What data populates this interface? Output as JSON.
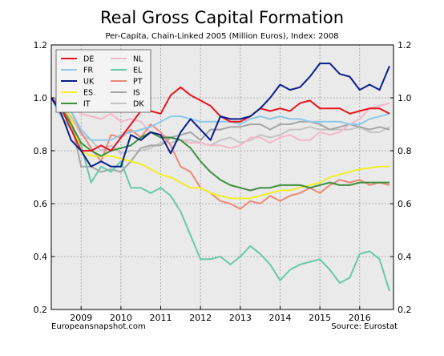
{
  "chart_data": {
    "type": "line",
    "title": "Real Gross Capital Formation",
    "subtitle": "Per-Capita, Chain-Linked 2005 (Million Euros), Index: 2008",
    "xlabel": "",
    "ylabel": "",
    "source_left": "Europeansnapshot.com",
    "source_right": "Source: Eurostat",
    "xlim": [
      2008.25,
      2016.85
    ],
    "ylim": [
      0.2,
      1.2
    ],
    "x_ticks": [
      2009,
      2010,
      2011,
      2012,
      2013,
      2014,
      2015,
      2016
    ],
    "x_tick_labels": [
      "2009",
      "2010",
      "2011",
      "2012",
      "2013",
      "2014",
      "2015",
      "2016"
    ],
    "y_ticks": [
      0.2,
      0.4,
      0.6,
      0.8,
      1.0,
      1.2
    ],
    "y_tick_labels": [
      "0.2",
      "0.4",
      "0.6",
      "0.8",
      "1.0",
      "1.2"
    ],
    "grid": true,
    "legend_position": "top-left",
    "x": [
      2008.25,
      2008.5,
      2008.75,
      2009,
      2009.25,
      2009.5,
      2009.75,
      2010,
      2010.25,
      2010.5,
      2010.75,
      2011,
      2011.25,
      2011.5,
      2011.75,
      2012,
      2012.25,
      2012.5,
      2012.75,
      2013,
      2013.25,
      2013.5,
      2013.75,
      2014,
      2014.25,
      2014.5,
      2014.75,
      2015,
      2015.25,
      2015.5,
      2015.75,
      2016,
      2016.25,
      2016.5,
      2016.75
    ],
    "series": [
      {
        "name": "DE",
        "color": "#e8141c",
        "values": [
          1.0,
          0.96,
          0.88,
          0.8,
          0.8,
          0.82,
          0.8,
          0.85,
          0.9,
          0.95,
          0.95,
          0.94,
          1.01,
          1.04,
          1.01,
          0.99,
          0.97,
          0.93,
          0.91,
          0.91,
          0.93,
          0.96,
          0.95,
          0.96,
          0.95,
          0.98,
          0.99,
          0.96,
          0.96,
          0.96,
          0.94,
          0.95,
          0.96,
          0.96,
          0.94
        ]
      },
      {
        "name": "FR",
        "color": "#8ec9ea",
        "values": [
          1.0,
          0.98,
          0.95,
          0.88,
          0.84,
          0.84,
          0.84,
          0.86,
          0.87,
          0.88,
          0.89,
          0.91,
          0.93,
          0.93,
          0.92,
          0.91,
          0.91,
          0.91,
          0.91,
          0.9,
          0.92,
          0.93,
          0.92,
          0.93,
          0.92,
          0.92,
          0.91,
          0.91,
          0.91,
          0.91,
          0.9,
          0.9,
          0.92,
          0.93,
          0.94
        ]
      },
      {
        "name": "UK",
        "color": "#0a1e8c",
        "values": [
          1.0,
          0.94,
          0.84,
          0.8,
          0.74,
          0.76,
          0.74,
          0.74,
          0.86,
          0.84,
          0.87,
          0.86,
          0.79,
          0.87,
          0.92,
          0.88,
          0.84,
          0.93,
          0.92,
          0.92,
          0.93,
          0.96,
          1.0,
          1.05,
          1.03,
          1.04,
          1.08,
          1.13,
          1.13,
          1.09,
          1.08,
          1.03,
          1.05,
          1.03,
          1.12
        ]
      },
      {
        "name": "ES",
        "color": "#f2ee23",
        "values": [
          1.0,
          0.98,
          0.92,
          0.8,
          0.78,
          0.78,
          0.78,
          0.77,
          0.76,
          0.75,
          0.73,
          0.71,
          0.7,
          0.68,
          0.66,
          0.66,
          0.64,
          0.63,
          0.62,
          0.62,
          0.62,
          0.63,
          0.64,
          0.65,
          0.65,
          0.66,
          0.67,
          0.68,
          0.7,
          0.71,
          0.72,
          0.73,
          0.735,
          0.74,
          0.74
        ]
      },
      {
        "name": "IT",
        "color": "#3e8f3e",
        "values": [
          1.0,
          0.96,
          0.9,
          0.83,
          0.8,
          0.78,
          0.8,
          0.81,
          0.82,
          0.85,
          0.87,
          0.85,
          0.85,
          0.84,
          0.81,
          0.76,
          0.72,
          0.69,
          0.67,
          0.66,
          0.65,
          0.66,
          0.66,
          0.67,
          0.67,
          0.67,
          0.66,
          0.67,
          0.68,
          0.67,
          0.67,
          0.68,
          0.68,
          0.68,
          0.68
        ]
      },
      {
        "name": "NL",
        "color": "#f4b8c8",
        "values": [
          1.0,
          0.99,
          0.97,
          0.94,
          0.93,
          0.92,
          0.94,
          0.91,
          0.92,
          0.91,
          0.87,
          0.86,
          0.85,
          0.84,
          0.83,
          0.83,
          0.82,
          0.82,
          0.81,
          0.82,
          0.85,
          0.85,
          0.83,
          0.85,
          0.86,
          0.84,
          0.84,
          0.87,
          0.86,
          0.87,
          0.9,
          0.92,
          0.96,
          0.97,
          0.98
        ]
      },
      {
        "name": "EL",
        "color": "#66c9a8",
        "values": [
          1.0,
          0.93,
          0.88,
          0.82,
          0.68,
          0.74,
          0.72,
          0.76,
          0.66,
          0.66,
          0.64,
          0.66,
          0.63,
          0.57,
          0.48,
          0.39,
          0.39,
          0.4,
          0.37,
          0.4,
          0.44,
          0.41,
          0.37,
          0.31,
          0.35,
          0.37,
          0.38,
          0.39,
          0.35,
          0.3,
          0.32,
          0.41,
          0.42,
          0.39,
          0.27
        ]
      },
      {
        "name": "PT",
        "color": "#ed8878",
        "values": [
          1.0,
          0.99,
          0.95,
          0.87,
          0.81,
          0.76,
          0.86,
          0.85,
          0.88,
          0.85,
          0.9,
          0.87,
          0.82,
          0.74,
          0.72,
          0.66,
          0.64,
          0.61,
          0.6,
          0.58,
          0.61,
          0.6,
          0.63,
          0.61,
          0.63,
          0.64,
          0.66,
          0.64,
          0.67,
          0.69,
          0.68,
          0.69,
          0.67,
          0.68,
          0.67
        ]
      },
      {
        "name": "IS",
        "color": "#a5a5a5",
        "values": [
          1.0,
          0.97,
          0.91,
          0.74,
          0.74,
          0.72,
          0.73,
          0.72,
          0.76,
          0.81,
          0.82,
          0.82,
          0.85,
          0.86,
          0.87,
          0.84,
          0.88,
          0.88,
          0.89,
          0.89,
          0.9,
          0.9,
          0.88,
          0.9,
          0.9,
          0.91,
          0.91,
          0.9,
          0.88,
          0.89,
          0.9,
          0.89,
          0.88,
          0.89,
          0.88
        ]
      },
      {
        "name": "DK",
        "color": "#c4c4c4",
        "values": [
          1.0,
          0.97,
          0.93,
          0.86,
          0.84,
          0.8,
          0.82,
          0.79,
          0.8,
          0.8,
          0.81,
          0.83,
          0.83,
          0.84,
          0.84,
          0.83,
          0.82,
          0.84,
          0.85,
          0.83,
          0.84,
          0.86,
          0.85,
          0.86,
          0.88,
          0.88,
          0.89,
          0.88,
          0.88,
          0.88,
          0.88,
          0.89,
          0.87,
          0.87,
          0.89
        ]
      }
    ]
  }
}
